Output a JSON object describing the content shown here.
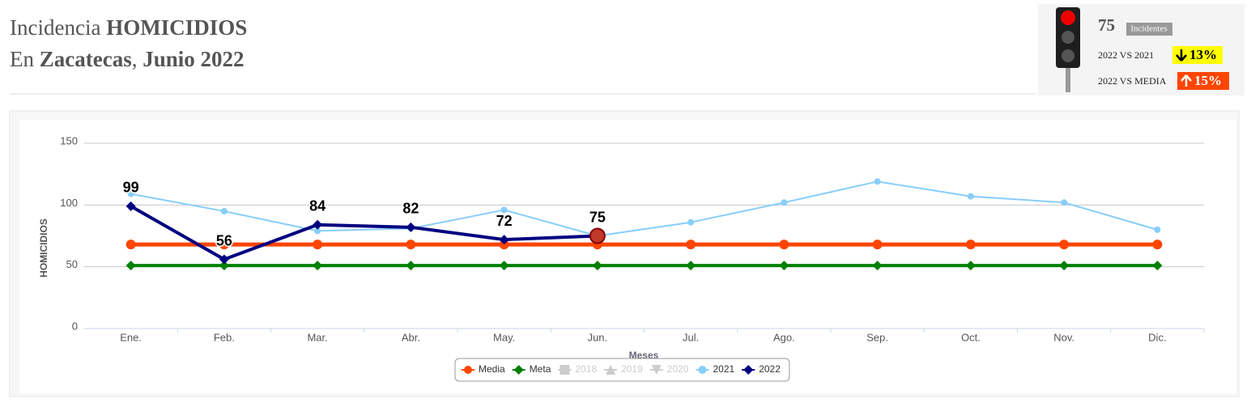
{
  "header": {
    "line1": [
      "Incidencia ",
      "HOMICIDIOS"
    ],
    "line2": [
      "En ",
      "Zacatecas",
      ", ",
      "Junio 2022"
    ]
  },
  "status": {
    "count": "75",
    "count_label": "Incidentes",
    "rows": [
      {
        "label": "2022 VS 2021",
        "change": "13%",
        "direction": "down",
        "color": "#ffff00",
        "text_color": "#000"
      },
      {
        "label": "2022 VS MEDIA",
        "change": "15%",
        "direction": "up",
        "color": "#ff4500",
        "text_color": "#fff"
      }
    ]
  },
  "chart_data": {
    "type": "line",
    "categories": [
      "Ene.",
      "Feb.",
      "Mar.",
      "Abr.",
      "May.",
      "Jun.",
      "Jul.",
      "Ago.",
      "Sep.",
      "Oct.",
      "Nov.",
      "Dic."
    ],
    "ylabel": "HOMICIDIOS",
    "xlabel": "Meses",
    "ylim": [
      0,
      150
    ],
    "yticks": [
      0,
      50,
      100,
      150
    ],
    "grid": true,
    "legend": "bottom",
    "series": [
      {
        "name": "Media",
        "color": "#ff4500",
        "marker": "circle",
        "width": 5,
        "values": [
          68,
          68,
          68,
          68,
          68,
          68,
          68,
          68,
          68,
          68,
          68,
          68
        ]
      },
      {
        "name": "Meta",
        "color": "#008000",
        "marker": "diamond",
        "width": 4,
        "values": [
          51,
          51,
          51,
          51,
          51,
          51,
          51,
          51,
          51,
          51,
          51,
          51
        ]
      },
      {
        "name": "2018",
        "color": "#cccccc",
        "marker": "square",
        "width": 2,
        "visible": false,
        "values": [
          null,
          null,
          null,
          null,
          null,
          null,
          null,
          null,
          null,
          null,
          null,
          null
        ]
      },
      {
        "name": "2019",
        "color": "#cccccc",
        "marker": "triangle",
        "width": 2,
        "visible": false,
        "values": [
          null,
          null,
          null,
          null,
          null,
          null,
          null,
          null,
          null,
          null,
          null,
          null
        ]
      },
      {
        "name": "2020",
        "color": "#cccccc",
        "marker": "triangle-down",
        "width": 2,
        "visible": false,
        "values": [
          null,
          null,
          null,
          null,
          null,
          null,
          null,
          null,
          null,
          null,
          null,
          null
        ]
      },
      {
        "name": "2021",
        "color": "#87cefa",
        "marker": "circle",
        "width": 2,
        "values": [
          109,
          95,
          79,
          81,
          96,
          75,
          86,
          102,
          119,
          107,
          102,
          80
        ]
      },
      {
        "name": "2022",
        "color": "#000080",
        "marker": "diamond",
        "width": 4,
        "labels": true,
        "highlight_last": "#c0392b",
        "values": [
          99,
          56,
          84,
          82,
          72,
          75,
          null,
          null,
          null,
          null,
          null,
          null
        ]
      }
    ]
  }
}
